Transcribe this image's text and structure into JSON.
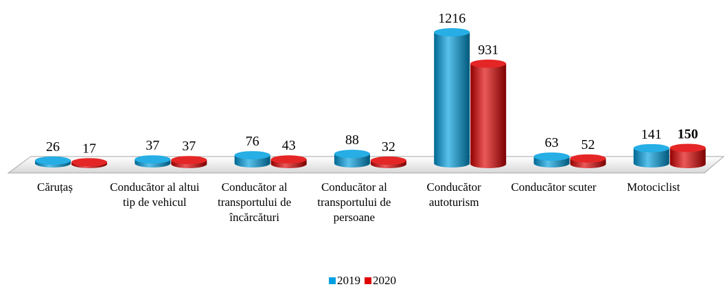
{
  "chart_data": {
    "type": "bar3d",
    "categories": [
      "Căruțaș",
      "Conducător al altui tip de vehicul",
      "Conducător al transportului de încărcături",
      "Conducător al transportului de persoane",
      "Conducător autoturism",
      "Conducător scuter",
      "Motociclist"
    ],
    "series": [
      {
        "name": "2019",
        "color": "#00a0e0",
        "values": [
          26,
          37,
          76,
          88,
          1216,
          63,
          141
        ]
      },
      {
        "name": "2020",
        "color": "#e00000",
        "values": [
          17,
          37,
          43,
          32,
          931,
          52,
          150
        ]
      }
    ],
    "bold_labels": [
      [
        1,
        6
      ]
    ]
  }
}
